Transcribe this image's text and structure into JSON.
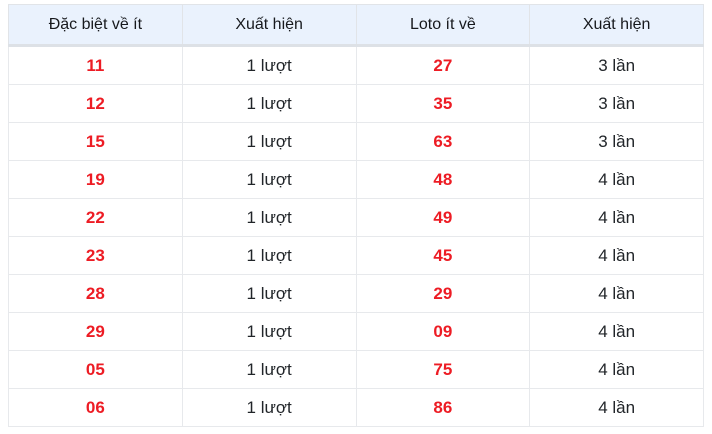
{
  "colors": {
    "header_bg": "#eaf2fd",
    "number_red": "#ed1c24",
    "text_dark": "#212529",
    "grid_border": "#e7e9ec"
  },
  "table": {
    "headers": [
      "Đặc biệt về ít",
      "Xuất hiện",
      "Loto ít về",
      "Xuất hiện"
    ],
    "rows": [
      [
        "11",
        "1 lượt",
        "27",
        "3 lần"
      ],
      [
        "12",
        "1 lượt",
        "35",
        "3 lần"
      ],
      [
        "15",
        "1 lượt",
        "63",
        "3 lần"
      ],
      [
        "19",
        "1 lượt",
        "48",
        "4 lần"
      ],
      [
        "22",
        "1 lượt",
        "49",
        "4 lần"
      ],
      [
        "23",
        "1 lượt",
        "45",
        "4 lần"
      ],
      [
        "28",
        "1 lượt",
        "29",
        "4 lần"
      ],
      [
        "29",
        "1 lượt",
        "09",
        "4 lần"
      ],
      [
        "05",
        "1 lượt",
        "75",
        "4 lần"
      ],
      [
        "06",
        "1 lượt",
        "86",
        "4 lần"
      ]
    ]
  }
}
